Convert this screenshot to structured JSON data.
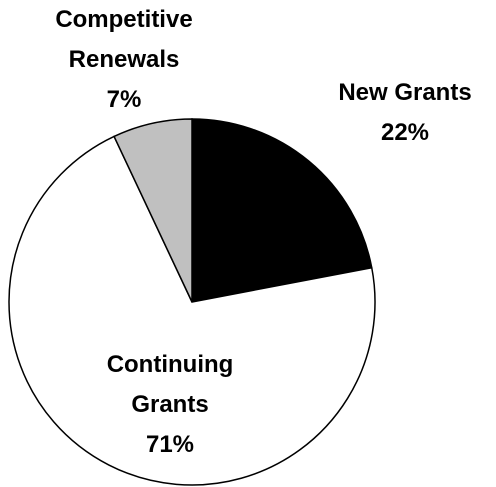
{
  "chart_data": {
    "type": "pie",
    "categories": [
      "New Grants",
      "Continuing Grants",
      "Competitive Renewals"
    ],
    "values": [
      22,
      71,
      7
    ],
    "value_labels": [
      "22%",
      "71%",
      "7%"
    ],
    "colors": [
      "#000000",
      "#ffffff",
      "#c0c0c0"
    ]
  }
}
